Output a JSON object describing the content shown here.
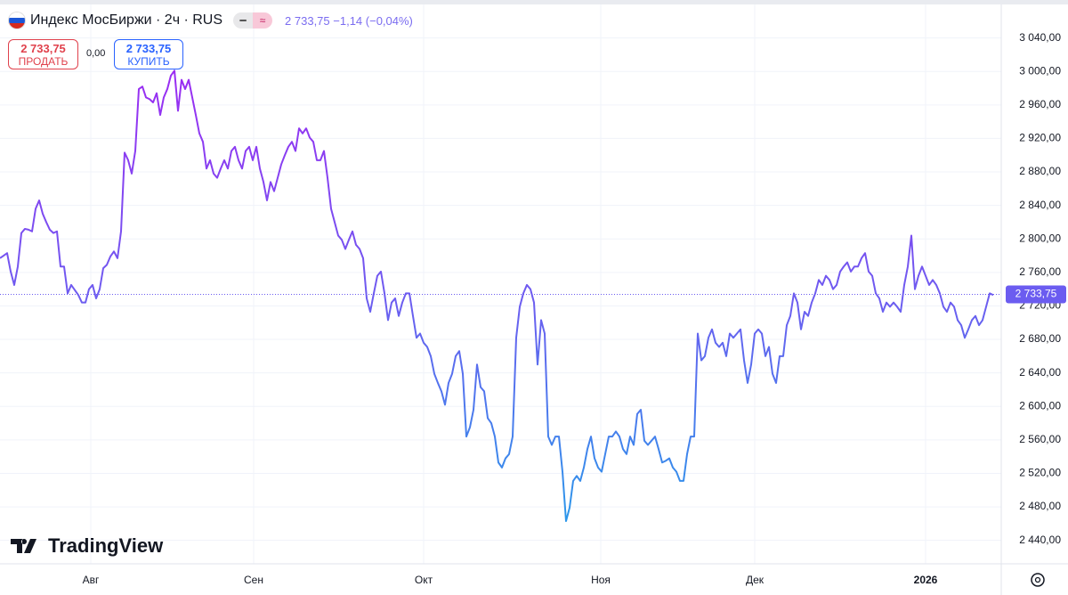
{
  "header": {
    "symbol": "Индекс МосБиржи · 2ч · RUS",
    "price": "2 733,75",
    "change": "−1,14 (−0,04%)",
    "sell_price": "2 733,75",
    "sell_label": "ПРОДАТЬ",
    "spread": "0,00",
    "buy_price": "2 733,75",
    "buy_label": "КУПИТЬ",
    "logo": "TradingView"
  },
  "chart_data": {
    "type": "line",
    "series": [
      {
        "name": "Индекс МосБиржи",
        "color": "#7b4ff0",
        "gradient": [
          "#9b2cf2",
          "#6d5cf0",
          "#2a98ea"
        ],
        "values": [
          2777,
          2780,
          2783,
          2761,
          2745,
          2767,
          2807,
          2812,
          2811,
          2809,
          2836,
          2846,
          2830,
          2820,
          2811,
          2807,
          2809,
          2767,
          2767,
          2735,
          2745,
          2739,
          2733,
          2724,
          2724,
          2740,
          2745,
          2729,
          2740,
          2765,
          2769,
          2779,
          2785,
          2777,
          2809,
          2903,
          2894,
          2878,
          2905,
          2979,
          2982,
          2969,
          2967,
          2963,
          2974,
          2948,
          2969,
          2979,
          2995,
          3001,
          2953,
          2990,
          2979,
          2990,
          2969,
          2948,
          2926,
          2916,
          2884,
          2894,
          2878,
          2873,
          2884,
          2894,
          2884,
          2905,
          2910,
          2894,
          2884,
          2905,
          2910,
          2894,
          2910,
          2884,
          2868,
          2846,
          2868,
          2857,
          2873,
          2889,
          2900,
          2910,
          2916,
          2905,
          2932,
          2926,
          2932,
          2921,
          2916,
          2894,
          2894,
          2905,
          2873,
          2836,
          2820,
          2804,
          2799,
          2788,
          2799,
          2809,
          2793,
          2788,
          2777,
          2729,
          2713,
          2735,
          2756,
          2761,
          2735,
          2703,
          2724,
          2729,
          2708,
          2724,
          2735,
          2735,
          2708,
          2682,
          2687,
          2676,
          2671,
          2660,
          2639,
          2628,
          2618,
          2602,
          2628,
          2639,
          2660,
          2666,
          2639,
          2564,
          2575,
          2596,
          2650,
          2623,
          2618,
          2586,
          2580,
          2564,
          2533,
          2527,
          2538,
          2543,
          2564,
          2682,
          2719,
          2735,
          2745,
          2740,
          2724,
          2650,
          2703,
          2687,
          2564,
          2554,
          2564,
          2564,
          2522,
          2463,
          2479,
          2511,
          2517,
          2511,
          2527,
          2549,
          2564,
          2538,
          2527,
          2522,
          2543,
          2564,
          2564,
          2570,
          2564,
          2549,
          2543,
          2564,
          2554,
          2591,
          2596,
          2559,
          2554,
          2559,
          2564,
          2549,
          2533,
          2535,
          2538,
          2527,
          2522,
          2511,
          2511,
          2543,
          2564,
          2564,
          2687,
          2655,
          2660,
          2682,
          2692,
          2676,
          2671,
          2676,
          2660,
          2687,
          2682,
          2687,
          2692,
          2655,
          2628,
          2650,
          2687,
          2692,
          2687,
          2660,
          2671,
          2639,
          2628,
          2660,
          2660,
          2697,
          2708,
          2735,
          2724,
          2692,
          2713,
          2708,
          2724,
          2735,
          2751,
          2745,
          2756,
          2751,
          2740,
          2745,
          2761,
          2767,
          2772,
          2761,
          2767,
          2767,
          2777,
          2783,
          2761,
          2756,
          2735,
          2729,
          2713,
          2724,
          2719,
          2724,
          2719,
          2713,
          2745,
          2767,
          2804,
          2740,
          2756,
          2767,
          2756,
          2745,
          2751,
          2745,
          2735,
          2719,
          2713,
          2724,
          2719,
          2703,
          2697,
          2682,
          2692,
          2703,
          2708,
          2697,
          2703,
          2719,
          2735,
          2733
        ]
      }
    ],
    "last_price": {
      "value": 2733.75,
      "label": "2 733,75"
    },
    "ylim": [
      2412,
      3080
    ],
    "yticks": [
      {
        "value": 2440,
        "label": "2 440,00"
      },
      {
        "value": 2480,
        "label": "2 480,00"
      },
      {
        "value": 2520,
        "label": "2 520,00"
      },
      {
        "value": 2560,
        "label": "2 560,00"
      },
      {
        "value": 2600,
        "label": "2 600,00"
      },
      {
        "value": 2640,
        "label": "2 640,00"
      },
      {
        "value": 2680,
        "label": "2 680,00"
      },
      {
        "value": 2720,
        "label": "2 720,00"
      },
      {
        "value": 2760,
        "label": "2 760,00"
      },
      {
        "value": 2800,
        "label": "2 800,00"
      },
      {
        "value": 2840,
        "label": "2 840,00"
      },
      {
        "value": 2880,
        "label": "2 880,00"
      },
      {
        "value": 2920,
        "label": "2 920,00"
      },
      {
        "value": 2960,
        "label": "2 960,00"
      },
      {
        "value": 3000,
        "label": "3 000,00"
      },
      {
        "value": 3040,
        "label": "3 040,00"
      }
    ],
    "xticks": [
      {
        "value": 25.5,
        "label": "Авг"
      },
      {
        "value": 71.25,
        "label": "Сен"
      },
      {
        "value": 119,
        "label": "Окт"
      },
      {
        "value": 168.75,
        "label": "Ноя"
      },
      {
        "value": 212,
        "label": "Дек"
      },
      {
        "value": 260,
        "label": "2026",
        "bold": true
      }
    ],
    "grid": true
  }
}
